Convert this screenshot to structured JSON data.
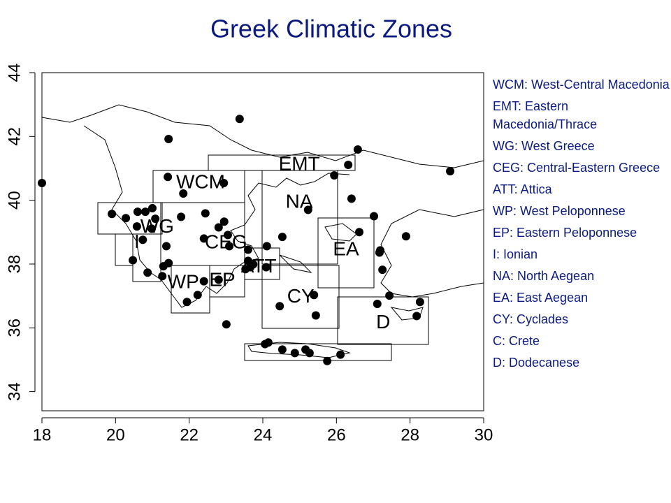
{
  "chart_data": {
    "type": "scatter",
    "title": "Greek Climatic Zones",
    "xlim": [
      18,
      30
    ],
    "ylim": [
      33.4,
      44
    ],
    "xticks": [
      18,
      20,
      22,
      24,
      26,
      28,
      30
    ],
    "yticks": [
      34,
      36,
      38,
      40,
      42,
      44
    ],
    "color": "#000000",
    "x": [
      23.37,
      21.44,
      26.58,
      26.32,
      25.94,
      29.09,
      18.0,
      21.42,
      21.84,
      22.94,
      26.41,
      25.23,
      19.9,
      20.28,
      20.6,
      20.81,
      21.0,
      21.78,
      22.44,
      22.95,
      20.58,
      20.98,
      21.08,
      20.74,
      21.38,
      22.4,
      22.8,
      23.05,
      23.09,
      23.6,
      24.11,
      24.53,
      26.62,
      27.02,
      27.89,
      27.19,
      27.17,
      27.25,
      20.47,
      21.3,
      21.44,
      21.27,
      20.87,
      23.6,
      23.66,
      23.74,
      23.53,
      24.09,
      22.4,
      22.8,
      22.23,
      21.94,
      24.46,
      25.39,
      27.44,
      27.11,
      28.27,
      28.18,
      25.44,
      23.01,
      24.06,
      24.15,
      24.53,
      24.87,
      25.16,
      25.27,
      25.75,
      26.11
    ],
    "values": [
      42.55,
      41.92,
      41.59,
      41.11,
      40.78,
      40.91,
      40.54,
      40.73,
      40.21,
      40.54,
      40.05,
      39.7,
      39.57,
      39.44,
      39.64,
      39.64,
      39.75,
      39.48,
      39.59,
      39.33,
      39.18,
      39.11,
      39.42,
      38.76,
      38.56,
      38.8,
      39.15,
      38.91,
      38.56,
      38.45,
      38.56,
      38.85,
      39.0,
      39.5,
      38.87,
      38.43,
      38.36,
      37.82,
      38.12,
      37.93,
      38.03,
      37.62,
      37.73,
      38.1,
      37.9,
      37.99,
      37.84,
      37.9,
      37.46,
      37.51,
      37.03,
      36.81,
      36.68,
      37.03,
      37.01,
      36.75,
      36.81,
      36.37,
      36.39,
      36.11,
      35.49,
      35.54,
      35.32,
      35.21,
      35.32,
      35.21,
      34.96,
      35.16
    ],
    "annotations": [
      {
        "text": "WCM",
        "x": 22.31,
        "y": 40.54
      },
      {
        "text": "EMT",
        "x": 24.99,
        "y": 41.11
      },
      {
        "text": "NA",
        "x": 24.99,
        "y": 39.92
      },
      {
        "text": "WG",
        "x": 21.13,
        "y": 39.15
      },
      {
        "text": "I",
        "x": 20.58,
        "y": 38.67
      },
      {
        "text": "CEG",
        "x": 23.0,
        "y": 38.65
      },
      {
        "text": "EA",
        "x": 26.26,
        "y": 38.43
      },
      {
        "text": "ATT",
        "x": 23.89,
        "y": 37.9
      },
      {
        "text": "WP",
        "x": 21.84,
        "y": 37.4
      },
      {
        "text": "EP",
        "x": 22.9,
        "y": 37.47
      },
      {
        "text": "CY",
        "x": 25.03,
        "y": 36.96
      },
      {
        "text": "D",
        "x": 27.27,
        "y": 36.15
      }
    ],
    "legend": [
      "WCM: West-Central Macedonia",
      "EMT: Eastern Macedonia/Thrace",
      "WG: West Greece",
      "CEG: Central-Eastern Greece",
      "ATT: Attica",
      "WP: West Peloponnese",
      "EP: Eastern Peloponnese",
      "I: Ionian",
      "NA: North Aegean",
      "EA: East Aegean",
      "CY: Cyclades",
      "C: Crete",
      "D: Dodecanese"
    ]
  }
}
